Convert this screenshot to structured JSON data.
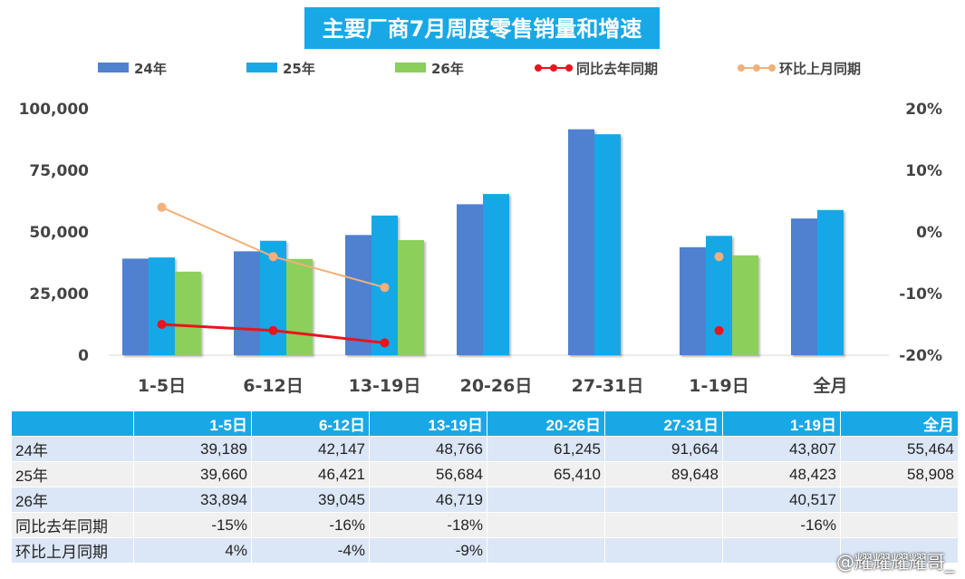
{
  "chart_data": {
    "type": "bar",
    "title": "主要厂商7月周度零售销量和增速",
    "categories": [
      "1-5日",
      "6-12日",
      "13-19日",
      "20-26日",
      "27-31日",
      "1-19日",
      "全月"
    ],
    "series": [
      {
        "name": "24年",
        "kind": "bar",
        "color": "#4f81d0",
        "values": [
          39189,
          42147,
          48766,
          61245,
          91664,
          43807,
          55464
        ]
      },
      {
        "name": "25年",
        "kind": "bar",
        "color": "#19a8e6",
        "values": [
          39660,
          46421,
          56684,
          65410,
          89648,
          48423,
          58908
        ]
      },
      {
        "name": "26年",
        "kind": "bar",
        "color": "#8ccf5a",
        "values": [
          33894,
          39045,
          46719,
          null,
          null,
          40517,
          null
        ]
      },
      {
        "name": "同比去年同期",
        "kind": "line",
        "axis": "right",
        "color": "#e8141e",
        "values": [
          -15,
          -16,
          -18,
          null,
          null,
          -16,
          null
        ]
      },
      {
        "name": "环比上月同期",
        "kind": "line",
        "axis": "right",
        "color": "#f2b07a",
        "values": [
          4,
          -4,
          -9,
          null,
          null,
          -4,
          null
        ]
      }
    ],
    "y_left": {
      "ylim": [
        0,
        100000
      ],
      "ticks": [
        "0",
        "25,000",
        "50,000",
        "75,000",
        "100,000"
      ]
    },
    "y_right": {
      "ylim": [
        -20,
        20
      ],
      "ticks": [
        "-20%",
        "-10%",
        "0%",
        "10%",
        "20%"
      ]
    },
    "legend_position": "top",
    "grid": false
  },
  "table": {
    "headers": [
      "1-5日",
      "6-12日",
      "13-19日",
      "20-26日",
      "27-31日",
      "1-19日",
      "全月"
    ],
    "rows": [
      {
        "label": "24年",
        "cells": [
          "39,189",
          "42,147",
          "48,766",
          "61,245",
          "91,664",
          "43,807",
          "55,464"
        ]
      },
      {
        "label": "25年",
        "cells": [
          "39,660",
          "46,421",
          "56,684",
          "65,410",
          "89,648",
          "48,423",
          "58,908"
        ]
      },
      {
        "label": "26年",
        "cells": [
          "33,894",
          "39,045",
          "46,719",
          "",
          "",
          "40,517",
          ""
        ]
      },
      {
        "label": "同比去年同期",
        "cells": [
          "-15%",
          "-16%",
          "-18%",
          "",
          "",
          "-16%",
          ""
        ]
      },
      {
        "label": "环比上月同期",
        "cells": [
          "4%",
          "-4%",
          "-9%",
          "",
          "",
          "",
          ""
        ]
      }
    ]
  },
  "watermark": "@耀耀耀耀哥_",
  "colors": {
    "title_bg": "#19a8e6",
    "header_bg": "#19a8e6"
  }
}
